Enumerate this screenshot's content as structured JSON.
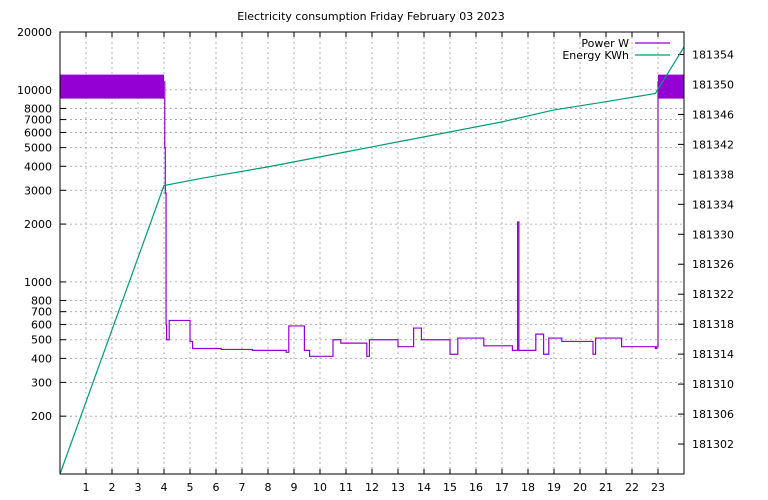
{
  "chart_data": {
    "type": "line",
    "title": "Electricity consumption Friday February 03 2023",
    "xlabel": "",
    "ylabel": "",
    "y2label": "",
    "xlim": [
      0,
      24
    ],
    "x_ticks": [
      1,
      2,
      3,
      4,
      5,
      6,
      7,
      8,
      9,
      10,
      11,
      12,
      13,
      14,
      15,
      16,
      17,
      18,
      19,
      20,
      21,
      22,
      23
    ],
    "y_scale": "log",
    "ylim": [
      100,
      20000
    ],
    "y_ticks": [
      {
        "value": 200,
        "label": "200"
      },
      {
        "value": 300,
        "label": "300"
      },
      {
        "value": 400,
        "label": "400"
      },
      {
        "value": 500,
        "label": "500"
      },
      {
        "value": 600,
        "label": "600"
      },
      {
        "value": 700,
        "label": "700"
      },
      {
        "value": 800,
        "label": "800"
      },
      {
        "value": 1000,
        "label": "1000"
      },
      {
        "value": 2000,
        "label": "2000"
      },
      {
        "value": 3000,
        "label": "3000"
      },
      {
        "value": 4000,
        "label": "4000"
      },
      {
        "value": 5000,
        "label": "5000"
      },
      {
        "value": 6000,
        "label": "6000"
      },
      {
        "value": 7000,
        "label": "7000"
      },
      {
        "value": 8000,
        "label": "8000"
      },
      {
        "value": 10000,
        "label": "10000"
      },
      {
        "value": 20000,
        "label": "20000"
      }
    ],
    "y2_scale": "linear",
    "y2lim": [
      181298,
      181357
    ],
    "y2_ticks": [
      181302,
      181306,
      181310,
      181314,
      181318,
      181322,
      181326,
      181330,
      181334,
      181338,
      181342,
      181346,
      181350,
      181354
    ],
    "grid": true,
    "legend": "top-right",
    "colors": {
      "power": "#9400d3",
      "energy": "#009e73"
    },
    "series": [
      {
        "name": "Power W",
        "axis": "left",
        "style": "step",
        "x": [
          0.0,
          4.0,
          4.03,
          4.05,
          4.08,
          4.1,
          4.2,
          5.0,
          5.1,
          5.2,
          6.2,
          7.4,
          8.7,
          8.8,
          9.4,
          9.6,
          10.5,
          10.8,
          11.8,
          11.9,
          13.0,
          13.6,
          13.9,
          15.0,
          15.3,
          15.5,
          16.3,
          17.4,
          17.6,
          17.65,
          17.7,
          18.3,
          18.6,
          18.8,
          19.3,
          20.5,
          20.6,
          21.6,
          22.7,
          22.9,
          22.95,
          23.0,
          24.0
        ],
        "values": [
          11000,
          11000,
          5000,
          2900,
          600,
          500,
          630,
          490,
          450,
          450,
          445,
          440,
          430,
          590,
          440,
          410,
          500,
          480,
          410,
          500,
          460,
          575,
          500,
          420,
          510,
          510,
          465,
          440,
          2050,
          440,
          440,
          535,
          420,
          510,
          490,
          420,
          510,
          460,
          460,
          450,
          460,
          11000,
          11000
        ]
      },
      {
        "name": "Energy KWh",
        "axis": "right",
        "style": "line",
        "x": [
          0.0,
          4.0,
          5.5,
          8.0,
          11.0,
          14.0,
          17.0,
          19.0,
          21.0,
          22.9,
          24.0
        ],
        "values": [
          181298,
          181336.5,
          181337.5,
          181339.0,
          181341.0,
          181343.0,
          181345.0,
          181346.6,
          181347.7,
          181348.8,
          181355
        ]
      }
    ]
  }
}
